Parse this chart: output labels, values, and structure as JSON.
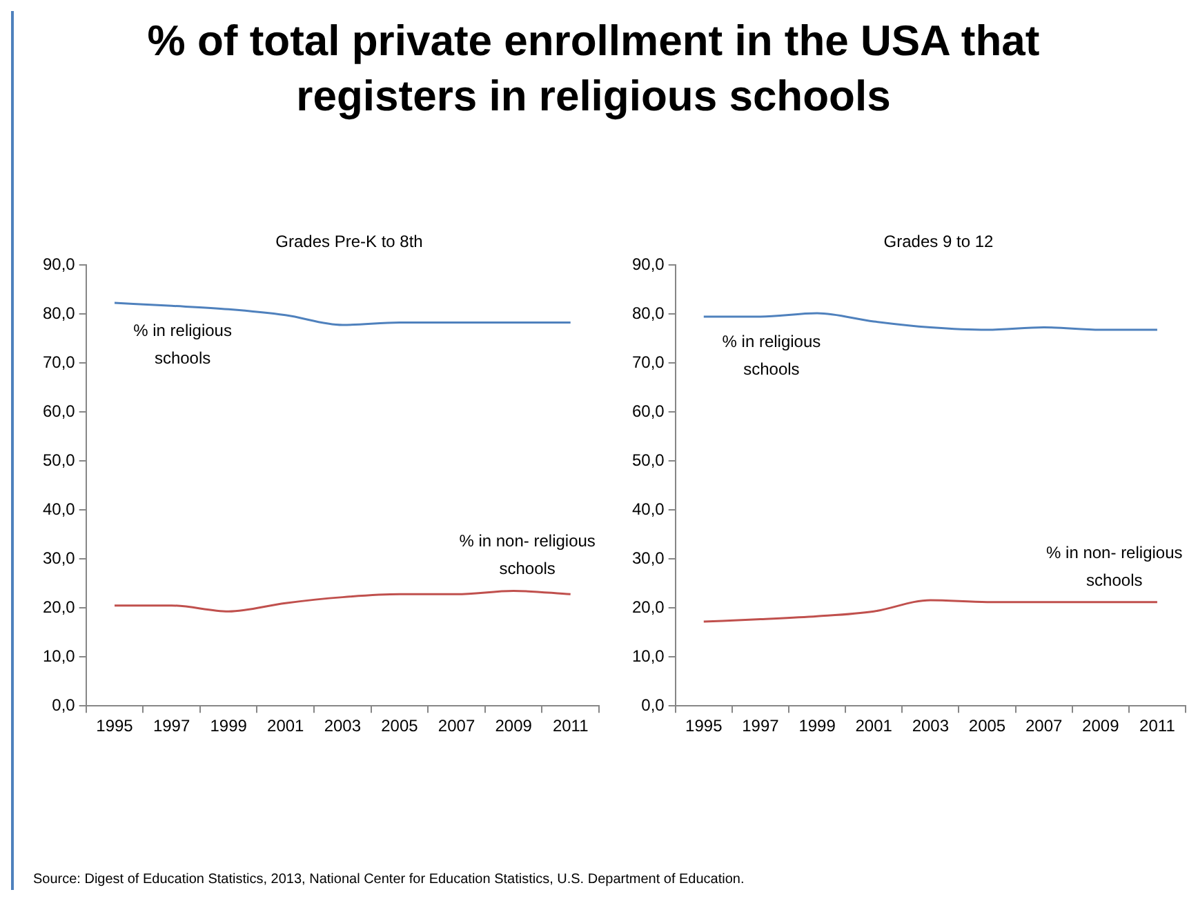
{
  "chart_data": [
    {
      "type": "line",
      "title": "% of total private enrollment in the USA that registers in religious schools",
      "subtitle": "Grades Pre-K to 8th",
      "categories": [
        "1995",
        "1997",
        "1999",
        "2001",
        "2003",
        "2005",
        "2007",
        "2009",
        "2011"
      ],
      "series": [
        {
          "name": "% in religious schools",
          "color": "#4f81bd",
          "values": [
            82.3,
            81.7,
            81.0,
            79.8,
            77.8,
            78.3,
            78.3,
            78.3,
            78.3
          ]
        },
        {
          "name": "% in non- religious schools",
          "color": "#c0504d",
          "values": [
            20.5,
            20.5,
            19.3,
            21.0,
            22.2,
            22.8,
            22.8,
            23.5,
            22.8
          ]
        }
      ],
      "ylim": [
        0,
        90
      ],
      "yticks": [
        {
          "value": 0,
          "label": "0,0"
        },
        {
          "value": 10,
          "label": "10,0"
        },
        {
          "value": 20,
          "label": "20,0"
        },
        {
          "value": 30,
          "label": "30,0"
        },
        {
          "value": 40,
          "label": "40,0"
        },
        {
          "value": 50,
          "label": "50,0"
        },
        {
          "value": 60,
          "label": "60,0"
        },
        {
          "value": 70,
          "label": "70,0"
        },
        {
          "value": 80,
          "label": "80,0"
        },
        {
          "value": 90,
          "label": "90,0"
        }
      ],
      "grid": false,
      "legend": false,
      "marker": "none",
      "annotations": [
        "Source: Digest of Education Statistics, 2013, National Center for Education Statistics, U.S. Department of Education."
      ]
    },
    {
      "type": "line",
      "subtitle": "Grades 9 to 12",
      "categories": [
        "1995",
        "1997",
        "1999",
        "2001",
        "2003",
        "2005",
        "2007",
        "2009",
        "2011"
      ],
      "series": [
        {
          "name": "% in religious schools",
          "color": "#4f81bd",
          "values": [
            79.5,
            79.5,
            80.2,
            78.5,
            77.3,
            76.8,
            77.3,
            76.8,
            76.8
          ]
        },
        {
          "name": "% in non- religious schools",
          "color": "#c0504d",
          "values": [
            17.2,
            17.7,
            18.3,
            19.3,
            21.6,
            21.2,
            21.2,
            21.2,
            21.2
          ]
        }
      ],
      "ylim": [
        0,
        90
      ],
      "yticks": [
        {
          "value": 0,
          "label": "0,0"
        },
        {
          "value": 10,
          "label": "10,0"
        },
        {
          "value": 20,
          "label": "20,0"
        },
        {
          "value": 30,
          "label": "30,0"
        },
        {
          "value": 40,
          "label": "40,0"
        },
        {
          "value": 50,
          "label": "50,0"
        },
        {
          "value": 60,
          "label": "60,0"
        },
        {
          "value": 70,
          "label": "70,0"
        },
        {
          "value": 80,
          "label": "80,0"
        },
        {
          "value": 90,
          "label": "90,0"
        }
      ],
      "grid": false,
      "legend": false,
      "marker": "none"
    }
  ]
}
